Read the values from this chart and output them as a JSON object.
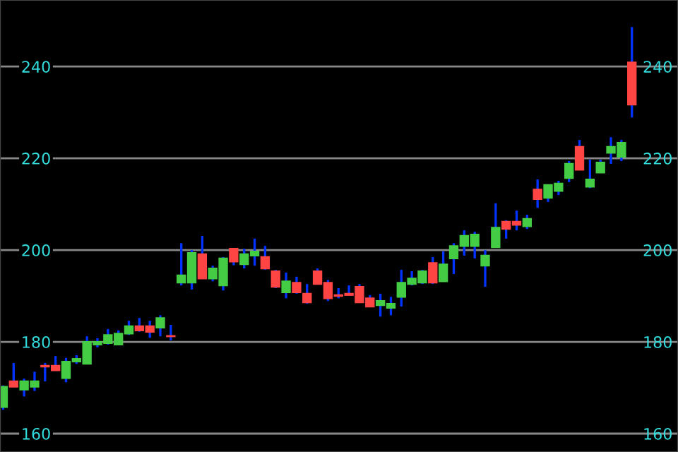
{
  "chart_data": {
    "type": "candlestick",
    "categories": [
      null,
      null,
      null,
      null,
      null,
      null,
      null,
      null,
      null,
      null,
      null,
      null,
      null,
      null,
      null,
      null,
      null,
      null,
      null,
      null,
      null,
      null,
      null,
      null,
      null,
      null,
      null,
      null,
      null,
      null,
      null,
      null,
      null,
      null,
      null,
      null,
      null,
      null,
      null,
      null,
      null,
      null,
      null,
      null,
      null,
      null,
      null,
      null,
      null,
      null,
      null,
      null,
      null,
      null,
      null,
      null,
      null,
      null,
      null,
      null,
      null
    ],
    "ohlc": [
      [
        165.8,
        170.5,
        165.2,
        170.2
      ],
      [
        171.4,
        175.4,
        170.2,
        170.2
      ],
      [
        169.6,
        172.0,
        168.1,
        171.4
      ],
      [
        170.2,
        173.5,
        169.3,
        171.4
      ],
      [
        174.8,
        175.4,
        171.4,
        174.6
      ],
      [
        174.8,
        176.9,
        173.8,
        173.8
      ],
      [
        172.1,
        176.5,
        171.2,
        175.7
      ],
      [
        175.7,
        177.1,
        175.2,
        176.3
      ],
      [
        175.2,
        181.2,
        175.2,
        180.0
      ],
      [
        179.4,
        180.8,
        178.8,
        180.0
      ],
      [
        179.7,
        182.8,
        179.4,
        181.5
      ],
      [
        179.4,
        182.5,
        179.4,
        181.8
      ],
      [
        181.8,
        184.6,
        181.5,
        183.4
      ],
      [
        183.4,
        185.2,
        182.2,
        182.5
      ],
      [
        183.4,
        184.6,
        180.9,
        182.2
      ],
      [
        183.1,
        185.8,
        181.2,
        185.2
      ],
      [
        181.3,
        183.7,
        180.3,
        181.2
      ],
      [
        192.9,
        201.5,
        192.3,
        194.5
      ],
      [
        192.9,
        200.0,
        191.4,
        199.4
      ],
      [
        199.1,
        203.1,
        193.8,
        193.8
      ],
      [
        193.8,
        196.6,
        193.2,
        196.0
      ],
      [
        192.3,
        198.5,
        191.2,
        198.2
      ],
      [
        200.3,
        200.3,
        196.7,
        197.5
      ],
      [
        196.9,
        200.3,
        196.0,
        199.1
      ],
      [
        198.8,
        202.5,
        196.6,
        199.7
      ],
      [
        198.5,
        200.9,
        195.7,
        196.0
      ],
      [
        195.4,
        195.7,
        191.7,
        192.0
      ],
      [
        190.8,
        195.1,
        189.5,
        193.2
      ],
      [
        192.9,
        194.2,
        190.5,
        190.8
      ],
      [
        190.5,
        192.6,
        188.3,
        188.6
      ],
      [
        195.4,
        196.0,
        192.6,
        192.6
      ],
      [
        192.9,
        193.5,
        188.9,
        189.5
      ],
      [
        190.2,
        191.7,
        189.5,
        190.0
      ],
      [
        190.5,
        192.3,
        190.2,
        190.2
      ],
      [
        192.0,
        192.6,
        188.6,
        188.6
      ],
      [
        189.5,
        190.2,
        187.7,
        187.7
      ],
      [
        188.0,
        190.5,
        185.5,
        188.9
      ],
      [
        187.4,
        189.8,
        185.8,
        188.3
      ],
      [
        189.8,
        195.7,
        187.7,
        192.9
      ],
      [
        192.6,
        195.4,
        192.3,
        193.8
      ],
      [
        192.9,
        195.7,
        192.6,
        195.4
      ],
      [
        197.2,
        198.5,
        192.6,
        192.9
      ],
      [
        193.2,
        199.7,
        193.2,
        196.9
      ],
      [
        198.2,
        201.5,
        194.8,
        200.9
      ],
      [
        200.9,
        204.3,
        198.8,
        203.1
      ],
      [
        200.9,
        204.0,
        198.2,
        203.4
      ],
      [
        196.6,
        200.0,
        192.0,
        198.8
      ],
      [
        200.6,
        210.2,
        200.6,
        204.9
      ],
      [
        206.2,
        206.5,
        202.5,
        204.6
      ],
      [
        206.2,
        208.6,
        204.3,
        205.5
      ],
      [
        205.2,
        207.7,
        204.6,
        206.8
      ],
      [
        213.2,
        215.4,
        209.2,
        211.1
      ],
      [
        211.4,
        214.2,
        210.5,
        214.2
      ],
      [
        212.9,
        215.1,
        212.0,
        214.5
      ],
      [
        215.7,
        219.4,
        214.8,
        218.8
      ],
      [
        222.5,
        224.0,
        217.5,
        217.5
      ],
      [
        213.8,
        219.7,
        213.5,
        215.4
      ],
      [
        216.9,
        219.7,
        216.9,
        219.1
      ],
      [
        221.2,
        224.6,
        218.8,
        222.5
      ],
      [
        220.3,
        224.0,
        219.4,
        223.4
      ],
      [
        240.9,
        248.6,
        228.9,
        231.7
      ]
    ],
    "colors": [
      "#44cc44",
      "#ff4444",
      "#44cc44",
      "#44cc44",
      "#ff4444",
      "#ff4444",
      "#44cc44",
      "#44cc44",
      "#44cc44",
      "#44cc44",
      "#44cc44",
      "#44cc44",
      "#44cc44",
      "#ff4444",
      "#ff4444",
      "#44cc44",
      "#ff4444",
      "#44cc44",
      "#44cc44",
      "#ff4444",
      "#44cc44",
      "#44cc44",
      "#ff4444",
      "#44cc44",
      "#44cc44",
      "#ff4444",
      "#ff4444",
      "#44cc44",
      "#ff4444",
      "#ff4444",
      "#ff4444",
      "#ff4444",
      "#ff4444",
      "#ff4444",
      "#ff4444",
      "#ff4444",
      "#44cc44",
      "#44cc44",
      "#44cc44",
      "#44cc44",
      "#44cc44",
      "#ff4444",
      "#44cc44",
      "#44cc44",
      "#44cc44",
      "#44cc44",
      "#44cc44",
      "#44cc44",
      "#ff4444",
      "#ff4444",
      "#44cc44",
      "#ff4444",
      "#44cc44",
      "#44cc44",
      "#44cc44",
      "#ff4444",
      "#44cc44",
      "#44cc44",
      "#44cc44",
      "#44cc44",
      "#ff4444"
    ],
    "ylim": [
      156,
      254.5
    ],
    "yticks": [
      160,
      180,
      200,
      220,
      240
    ],
    "y2lim": [
      156,
      254.5
    ],
    "y2ticks": [
      160,
      180,
      200,
      220,
      240
    ],
    "grid": "y"
  }
}
